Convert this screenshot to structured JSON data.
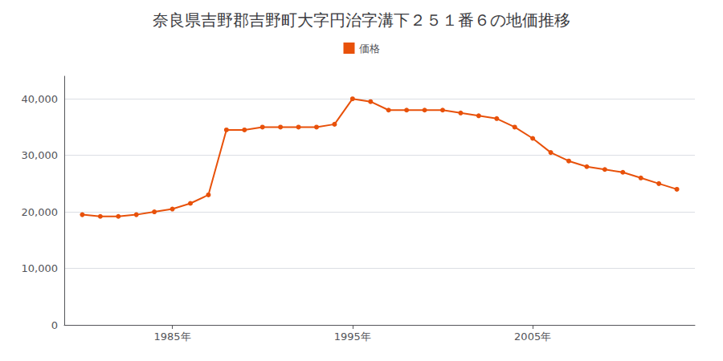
{
  "chart_data": {
    "type": "line",
    "title": "奈良県吉野郡吉野町大字円治字溝下２５１番６の地価推移",
    "x": [
      1980,
      1981,
      1982,
      1983,
      1984,
      1985,
      1986,
      1987,
      1988,
      1989,
      1990,
      1991,
      1992,
      1993,
      1994,
      1995,
      1996,
      1997,
      1998,
      1999,
      2000,
      2001,
      2002,
      2003,
      2004,
      2005,
      2006,
      2007,
      2008,
      2009,
      2010,
      2011,
      2012,
      2013
    ],
    "series": [
      {
        "name": "価格",
        "color": "#e8510a",
        "marker": "circle",
        "values": [
          19500,
          19200,
          19200,
          19500,
          20000,
          20500,
          21500,
          23000,
          34500,
          34500,
          35000,
          35000,
          35000,
          35000,
          35500,
          40000,
          39500,
          38000,
          38000,
          38000,
          38000,
          37500,
          37000,
          36500,
          35000,
          33000,
          30500,
          29000,
          28000,
          27500,
          27000,
          26000,
          25000,
          24000
        ]
      }
    ],
    "xlim": [
      1979,
      2014
    ],
    "xticks": [
      {
        "value": 1985,
        "label": "1985年"
      },
      {
        "value": 1995,
        "label": "1995年"
      },
      {
        "value": 2005,
        "label": "2005年"
      }
    ],
    "ylim": [
      0,
      44000
    ],
    "yticks": [
      0,
      {
        "value": 10000,
        "label": "10,000"
      },
      {
        "value": 20000,
        "label": "20,000"
      },
      {
        "value": 30000,
        "label": "30,000"
      },
      {
        "value": 40000,
        "label": "40,000"
      }
    ],
    "grid": "y",
    "legend": "top"
  }
}
